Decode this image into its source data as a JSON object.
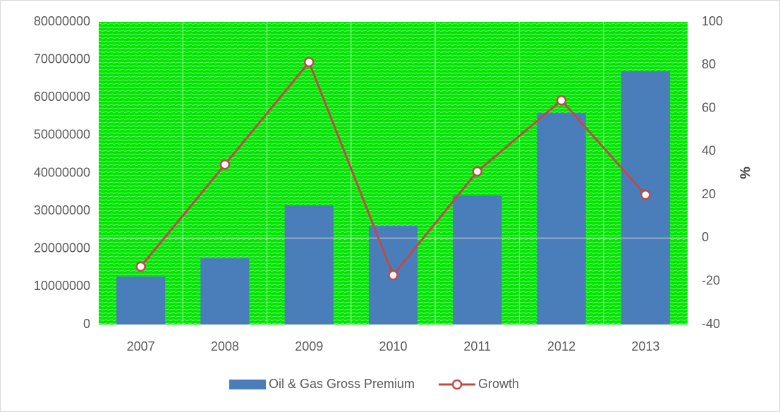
{
  "chart_data": {
    "type": "combo",
    "categories": [
      "2007",
      "2008",
      "2009",
      "2010",
      "2011",
      "2012",
      "2013"
    ],
    "series": [
      {
        "name": "Oil & Gas Gross Premium",
        "type": "bar",
        "color": "#4a7ebb",
        "values": [
          12700000,
          17500000,
          31500000,
          26100000,
          34100000,
          56000000,
          67000000
        ]
      },
      {
        "name": "Growth",
        "type": "line",
        "axis": "y2",
        "color": "#be4b48",
        "values": [
          -13.2,
          34,
          81.4,
          -17.2,
          30.8,
          63.7,
          20
        ]
      }
    ],
    "ylim": [
      0,
      80000000
    ],
    "yticks": [
      0,
      10000000,
      20000000,
      30000000,
      40000000,
      50000000,
      60000000,
      70000000,
      80000000
    ],
    "y2lim": [
      -40,
      100
    ],
    "y2ticks": [
      -40,
      -20,
      0,
      20,
      40,
      60,
      80,
      100
    ],
    "y2label": "%",
    "plot_background": "#00e600",
    "legend": "bottom"
  }
}
